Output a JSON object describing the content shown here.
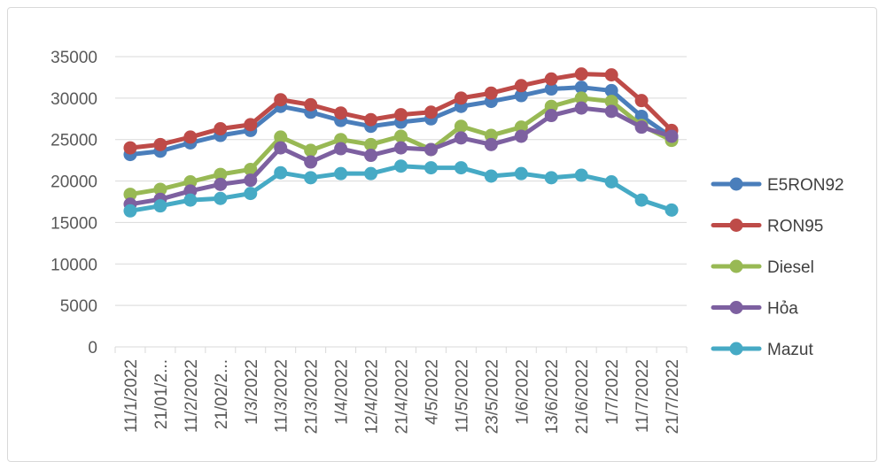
{
  "chart_data": {
    "type": "line",
    "categories": [
      "11/1/2022",
      "21/01/2...",
      "11/2/2022",
      "21/02/2...",
      "1/3/2022",
      "11/3/2022",
      "21/3/2022",
      "1/4/2022",
      "12/4/2022",
      "21/4/2022",
      "4/5/2022",
      "11/5/2022",
      "23/5/2022",
      "1/6/2022",
      "13/6/2022",
      "21/6/2022",
      "1/7/2022",
      "11/7/2022",
      "21/7/2022"
    ],
    "series": [
      {
        "name": "E5RON92",
        "color": "#4a7ebb",
        "values": [
          23200,
          23600,
          24600,
          25500,
          26100,
          29000,
          28300,
          27300,
          26600,
          27100,
          27500,
          29000,
          29600,
          30300,
          31100,
          31300,
          30900,
          27800,
          25300
        ]
      },
      {
        "name": "RON95",
        "color": "#be4b48",
        "values": [
          24000,
          24400,
          25300,
          26300,
          26800,
          29800,
          29200,
          28200,
          27400,
          28000,
          28300,
          30000,
          30600,
          31500,
          32300,
          32900,
          32800,
          29700,
          26100
        ]
      },
      {
        "name": "Diesel",
        "color": "#98b954",
        "values": [
          18400,
          19000,
          19900,
          20800,
          21400,
          25300,
          23700,
          25000,
          24400,
          25400,
          23800,
          26600,
          25500,
          26500,
          29000,
          30000,
          29600,
          26700,
          24900
        ]
      },
      {
        "name": "Hỏa",
        "color": "#7d60a0",
        "values": [
          17200,
          17800,
          18800,
          19600,
          20100,
          24000,
          22300,
          23900,
          23100,
          24000,
          23800,
          25200,
          24400,
          25400,
          27900,
          28800,
          28400,
          26500,
          25400
        ]
      },
      {
        "name": "Mazut",
        "color": "#46aac5",
        "values": [
          16400,
          17000,
          17700,
          17900,
          18500,
          21000,
          20400,
          20900,
          20900,
          21800,
          21600,
          21600,
          20600,
          20900,
          20400,
          20700,
          19900,
          17700,
          16500
        ]
      }
    ],
    "y_ticks": [
      "0",
      "5000",
      "10000",
      "15000",
      "20000",
      "25000",
      "30000",
      "35000"
    ],
    "ylim": [
      0,
      35000
    ],
    "grid": true,
    "legend_position": "right"
  }
}
